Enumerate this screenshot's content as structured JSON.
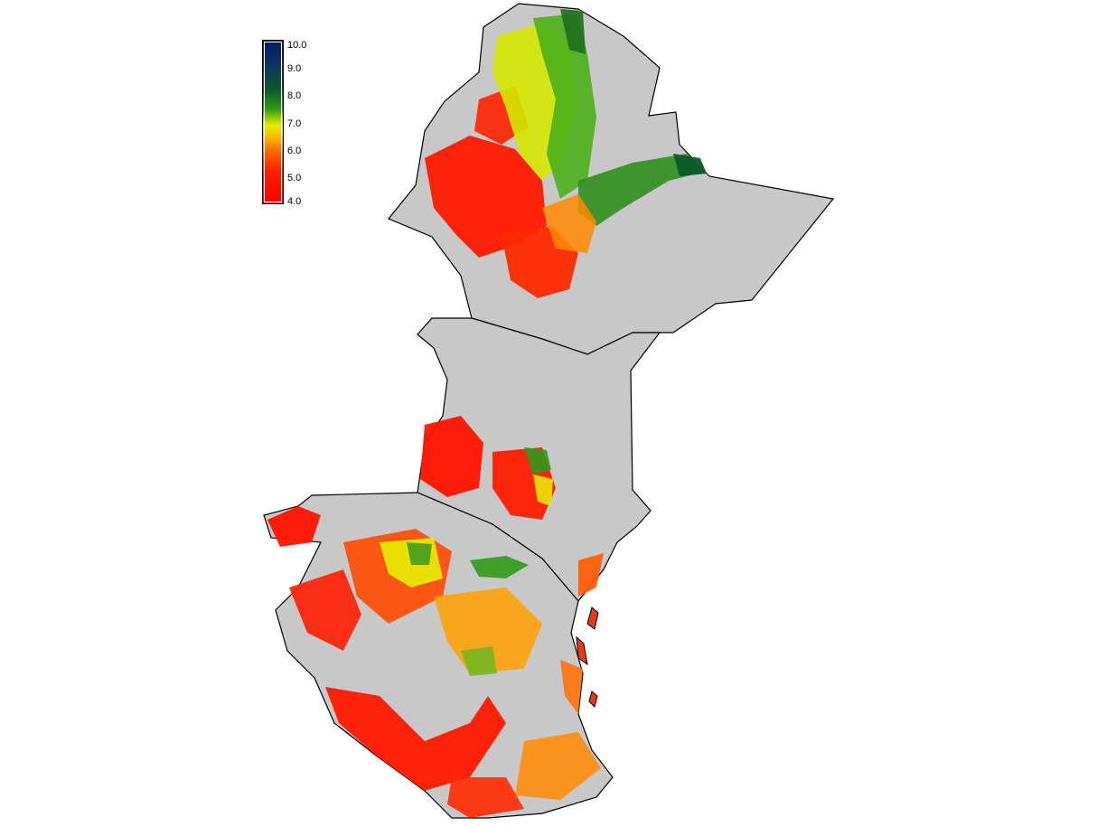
{
  "legend": {
    "labels": [
      "10.0",
      "9.0",
      "8.0",
      "7.0",
      "6.0",
      "5.0",
      "4.0"
    ],
    "colors": {
      "top": "#0a1a5e",
      "dark_green": "#0b5a2a",
      "green": "#2f9a1a",
      "yellow": "#e6f000",
      "orange": "#ffa500",
      "red": "#ff0000"
    }
  },
  "map": {
    "land_color": "#c8c8c8",
    "border_color": "#000000",
    "background": "#ffffff"
  }
}
